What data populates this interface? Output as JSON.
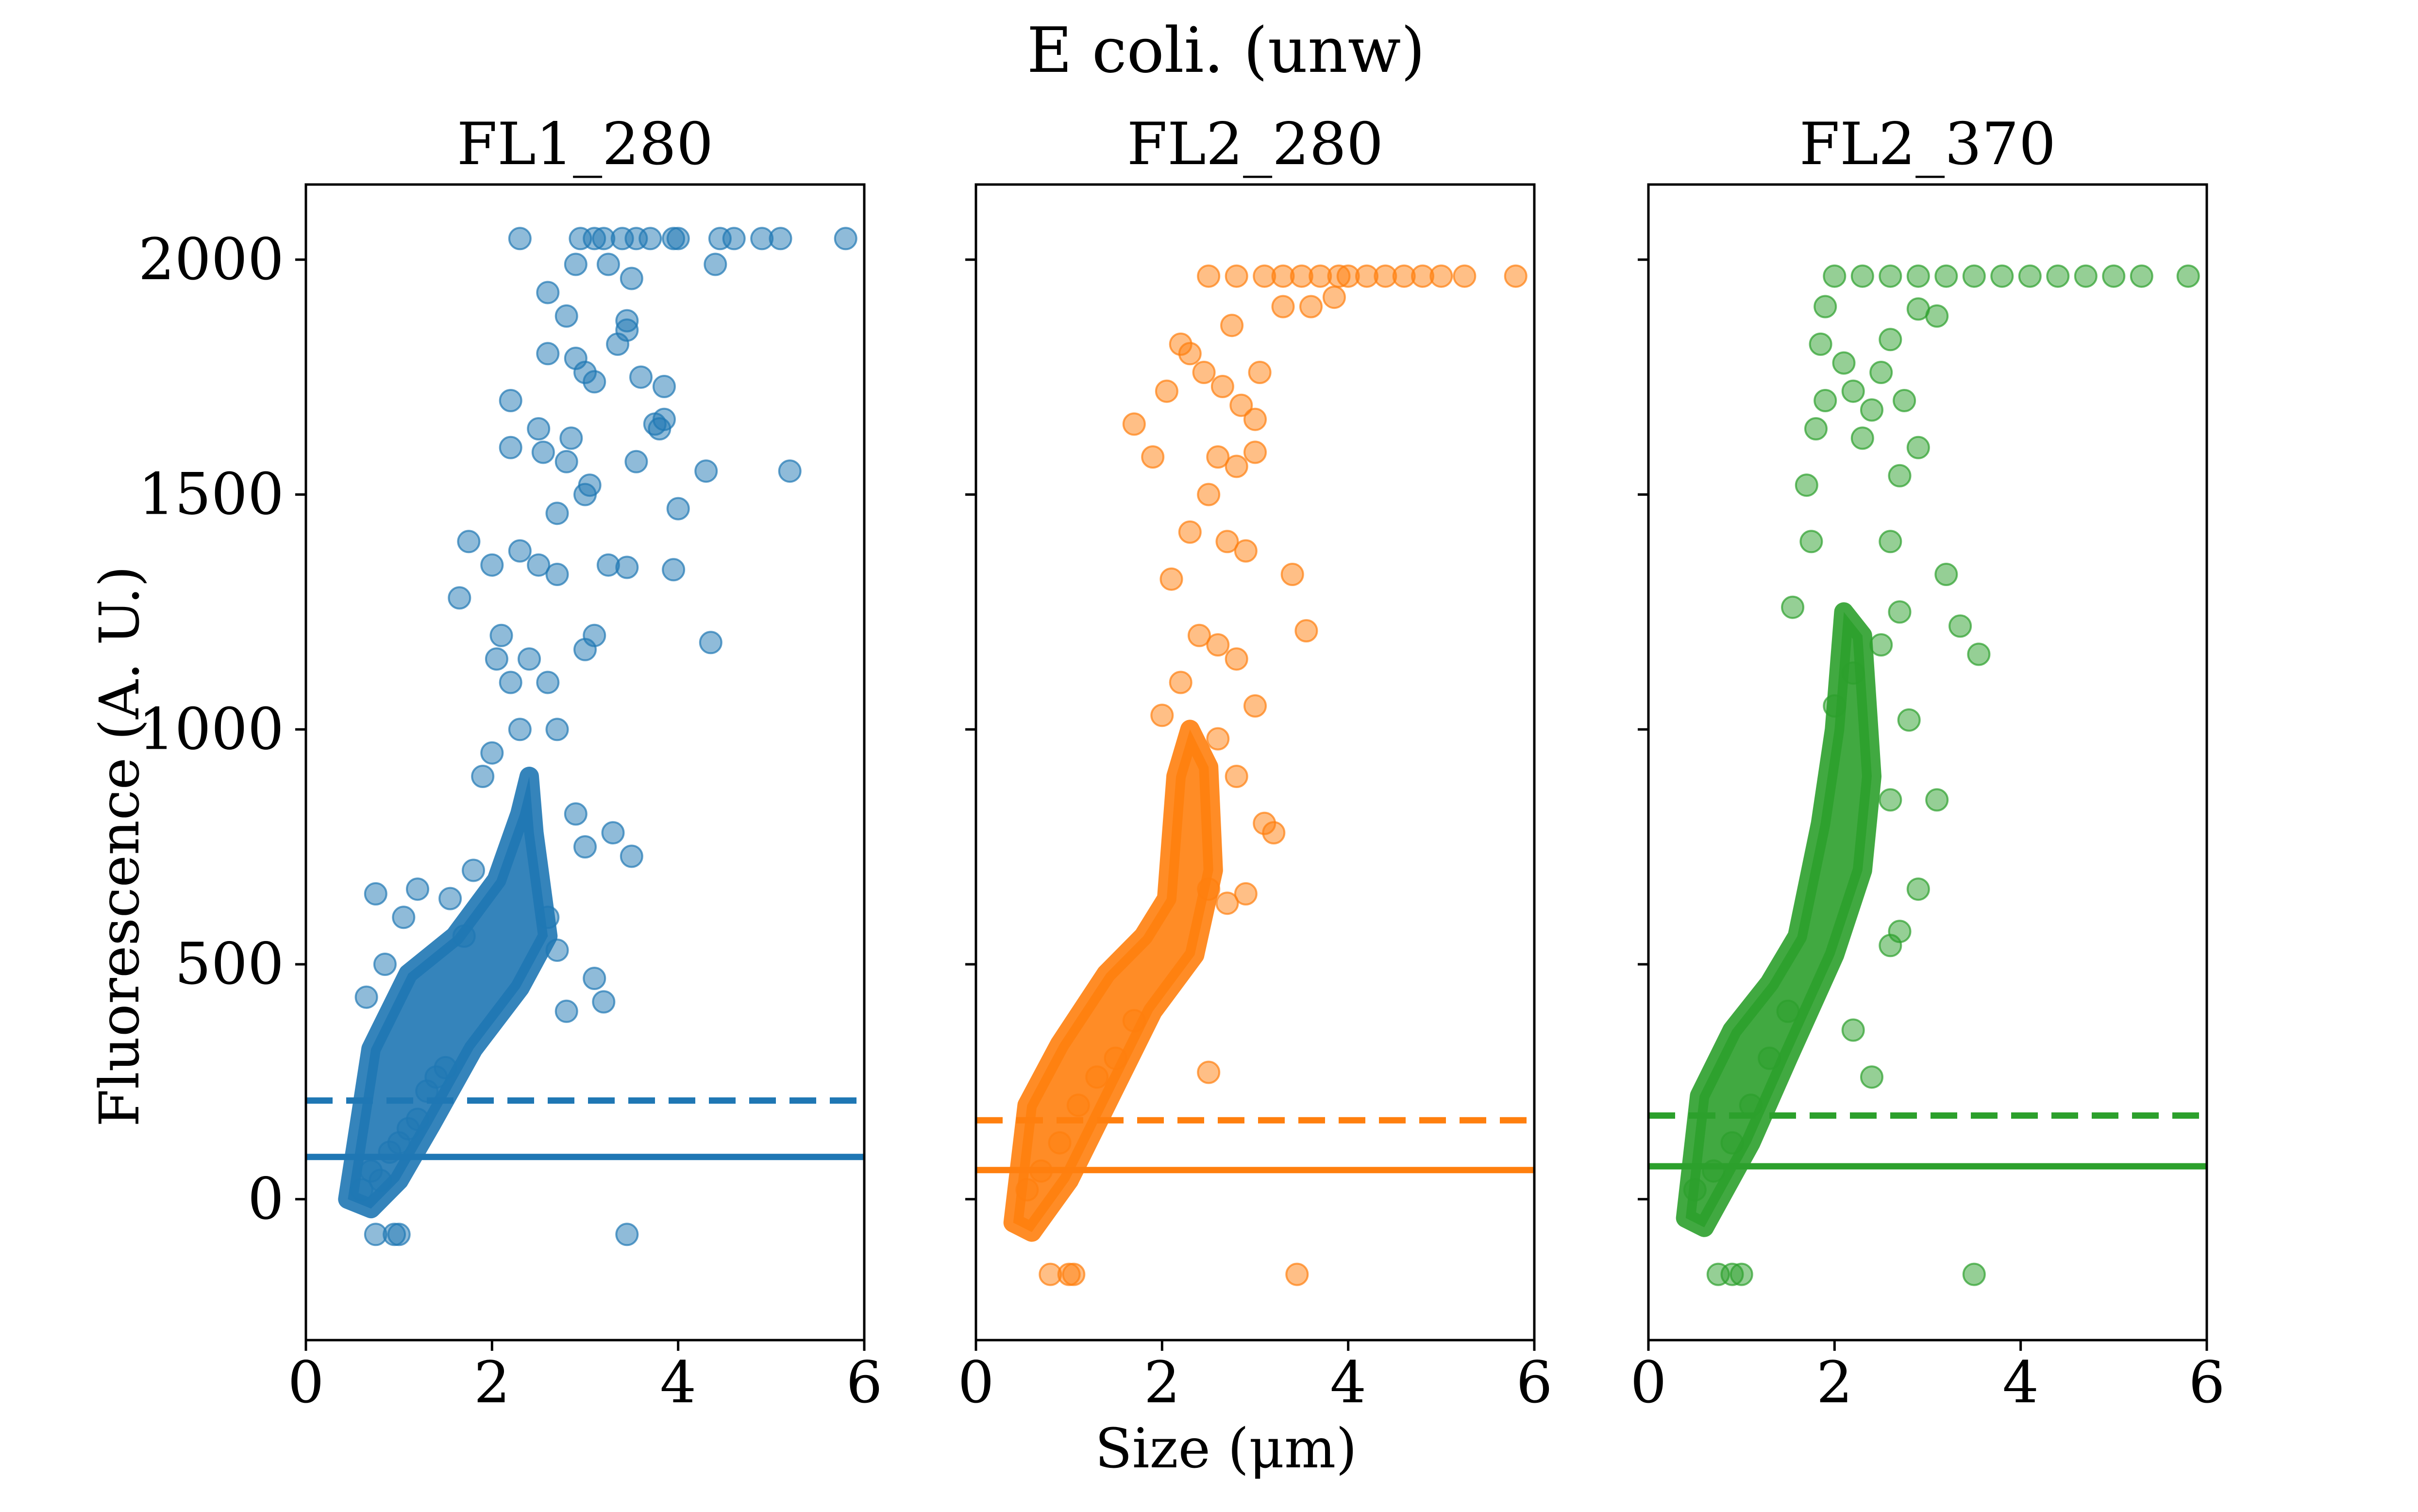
{
  "figure": {
    "suptitle": "E coli. (unw)",
    "xlabel": "Size (μm)",
    "ylabel": "Fluorescence (A. U.)"
  },
  "chart_data": [
    {
      "type": "scatter",
      "title": "FL1_280",
      "color": "#1f77b4",
      "xlim": [
        0,
        6
      ],
      "ylim": [
        -300,
        2160
      ],
      "xticks": [
        0,
        2,
        4,
        6
      ],
      "yticks": [
        0,
        500,
        1000,
        1500,
        2000
      ],
      "ytick_labels_shown": true,
      "hlines": [
        {
          "y": 90,
          "style": "solid"
        },
        {
          "y": 210,
          "style": "dashed"
        }
      ],
      "saturation": 2045,
      "points": [
        [
          0.75,
          -75
        ],
        [
          0.95,
          -75
        ],
        [
          1.0,
          -75
        ],
        [
          3.45,
          -75
        ],
        [
          0.6,
          20
        ],
        [
          0.7,
          60
        ],
        [
          0.8,
          40
        ],
        [
          0.9,
          100
        ],
        [
          1.0,
          120
        ],
        [
          1.1,
          150
        ],
        [
          1.2,
          170
        ],
        [
          1.3,
          230
        ],
        [
          1.4,
          260
        ],
        [
          1.5,
          280
        ],
        [
          0.65,
          430
        ],
        [
          0.75,
          650
        ],
        [
          0.85,
          500
        ],
        [
          1.05,
          600
        ],
        [
          1.2,
          660
        ],
        [
          1.55,
          640
        ],
        [
          1.7,
          560
        ],
        [
          1.8,
          700
        ],
        [
          1.9,
          900
        ],
        [
          2.0,
          950
        ],
        [
          2.05,
          1150
        ],
        [
          2.1,
          1200
        ],
        [
          2.2,
          1100
        ],
        [
          2.3,
          1000
        ],
        [
          2.4,
          1150
        ],
        [
          2.6,
          1100
        ],
        [
          2.7,
          1000
        ],
        [
          3.0,
          1170
        ],
        [
          3.1,
          1200
        ],
        [
          2.9,
          820
        ],
        [
          2.6,
          600
        ],
        [
          2.7,
          530
        ],
        [
          3.0,
          750
        ],
        [
          3.3,
          780
        ],
        [
          3.5,
          730
        ],
        [
          3.1,
          470
        ],
        [
          2.8,
          400
        ],
        [
          3.2,
          420
        ],
        [
          1.65,
          1280
        ],
        [
          1.75,
          1400
        ],
        [
          2.0,
          1350
        ],
        [
          2.3,
          1380
        ],
        [
          2.5,
          1350
        ],
        [
          2.7,
          1330
        ],
        [
          3.0,
          1500
        ],
        [
          3.05,
          1520
        ],
        [
          3.25,
          1350
        ],
        [
          3.45,
          1345
        ],
        [
          3.95,
          1340
        ],
        [
          4.35,
          1185
        ],
        [
          2.2,
          1600
        ],
        [
          2.2,
          1700
        ],
        [
          2.5,
          1640
        ],
        [
          2.55,
          1590
        ],
        [
          2.7,
          1460
        ],
        [
          2.8,
          1570
        ],
        [
          2.85,
          1620
        ],
        [
          2.6,
          1800
        ],
        [
          2.8,
          1880
        ],
        [
          2.9,
          1790
        ],
        [
          3.0,
          1760
        ],
        [
          3.1,
          1740
        ],
        [
          3.35,
          1820
        ],
        [
          3.45,
          1870
        ],
        [
          3.45,
          1850
        ],
        [
          3.5,
          1960
        ],
        [
          3.6,
          1750
        ],
        [
          3.55,
          1570
        ],
        [
          3.75,
          1650
        ],
        [
          3.8,
          1640
        ],
        [
          3.85,
          1730
        ],
        [
          3.85,
          1660
        ],
        [
          4.0,
          1470
        ],
        [
          4.3,
          1550
        ],
        [
          5.2,
          1550
        ],
        [
          2.6,
          1930
        ],
        [
          2.9,
          1990
        ],
        [
          2.3,
          2045
        ],
        [
          2.95,
          2045
        ],
        [
          3.1,
          2045
        ],
        [
          3.2,
          2045
        ],
        [
          3.4,
          2045
        ],
        [
          3.55,
          2045
        ],
        [
          3.7,
          2045
        ],
        [
          3.95,
          2045
        ],
        [
          4.0,
          2045
        ],
        [
          4.45,
          2045
        ],
        [
          4.6,
          2045
        ],
        [
          4.9,
          2045
        ],
        [
          5.1,
          2045
        ],
        [
          5.8,
          2045
        ],
        [
          4.4,
          1990
        ],
        [
          3.25,
          1990
        ]
      ],
      "cloud": [
        [
          0.45,
          0
        ],
        [
          0.7,
          320
        ],
        [
          1.1,
          480
        ],
        [
          1.6,
          560
        ],
        [
          2.05,
          680
        ],
        [
          2.3,
          820
        ],
        [
          2.4,
          900
        ],
        [
          2.45,
          780
        ],
        [
          2.6,
          560
        ],
        [
          2.3,
          450
        ],
        [
          1.8,
          320
        ],
        [
          1.35,
          160
        ],
        [
          1.0,
          40
        ],
        [
          0.7,
          -20
        ]
      ]
    },
    {
      "type": "scatter",
      "title": "FL2_280",
      "color": "#ff7f0e",
      "xlim": [
        0,
        6
      ],
      "ylim": [
        -300,
        2160
      ],
      "xticks": [
        0,
        2,
        4,
        6
      ],
      "yticks": [
        0,
        500,
        1000,
        1500,
        2000
      ],
      "ytick_labels_shown": false,
      "hlines": [
        {
          "y": 62,
          "style": "solid"
        },
        {
          "y": 168,
          "style": "dashed"
        }
      ],
      "saturation": 1965,
      "points": [
        [
          0.8,
          -160
        ],
        [
          1.0,
          -160
        ],
        [
          1.05,
          -160
        ],
        [
          3.45,
          -160
        ],
        [
          0.55,
          20
        ],
        [
          0.7,
          60
        ],
        [
          0.9,
          120
        ],
        [
          1.1,
          200
        ],
        [
          1.3,
          260
        ],
        [
          1.5,
          300
        ],
        [
          1.7,
          380
        ],
        [
          2.5,
          270
        ],
        [
          2.5,
          660
        ],
        [
          2.7,
          630
        ],
        [
          2.9,
          650
        ],
        [
          3.1,
          800
        ],
        [
          3.2,
          780
        ],
        [
          2.8,
          900
        ],
        [
          2.6,
          980
        ],
        [
          2.0,
          1030
        ],
        [
          2.2,
          1100
        ],
        [
          2.4,
          1200
        ],
        [
          2.6,
          1180
        ],
        [
          2.8,
          1150
        ],
        [
          3.0,
          1050
        ],
        [
          2.7,
          1400
        ],
        [
          2.9,
          1380
        ],
        [
          2.1,
          1320
        ],
        [
          2.3,
          1420
        ],
        [
          3.4,
          1330
        ],
        [
          3.55,
          1210
        ],
        [
          2.5,
          1500
        ],
        [
          2.6,
          1580
        ],
        [
          2.8,
          1560
        ],
        [
          3.0,
          1590
        ],
        [
          1.7,
          1650
        ],
        [
          1.9,
          1580
        ],
        [
          2.05,
          1720
        ],
        [
          2.3,
          1800
        ],
        [
          2.45,
          1760
        ],
        [
          2.65,
          1730
        ],
        [
          2.75,
          1860
        ],
        [
          2.85,
          1690
        ],
        [
          3.0,
          1660
        ],
        [
          3.05,
          1760
        ],
        [
          2.2,
          1820
        ],
        [
          3.3,
          1900
        ],
        [
          3.6,
          1900
        ],
        [
          3.85,
          1920
        ],
        [
          3.9,
          1965
        ],
        [
          2.5,
          1965
        ],
        [
          2.8,
          1965
        ],
        [
          3.1,
          1965
        ],
        [
          3.3,
          1965
        ],
        [
          3.5,
          1965
        ],
        [
          3.7,
          1965
        ],
        [
          4.0,
          1965
        ],
        [
          4.2,
          1965
        ],
        [
          4.4,
          1965
        ],
        [
          4.6,
          1965
        ],
        [
          4.8,
          1965
        ],
        [
          5.0,
          1965
        ],
        [
          5.25,
          1965
        ],
        [
          5.8,
          1965
        ]
      ],
      "cloud": [
        [
          0.4,
          -50
        ],
        [
          0.55,
          200
        ],
        [
          0.9,
          330
        ],
        [
          1.4,
          480
        ],
        [
          1.8,
          560
        ],
        [
          2.05,
          640
        ],
        [
          2.15,
          900
        ],
        [
          2.3,
          1000
        ],
        [
          2.5,
          920
        ],
        [
          2.55,
          700
        ],
        [
          2.35,
          520
        ],
        [
          1.9,
          400
        ],
        [
          1.45,
          220
        ],
        [
          1.0,
          40
        ],
        [
          0.6,
          -70
        ]
      ]
    },
    {
      "type": "scatter",
      "title": "FL2_370",
      "color": "#2ca02c",
      "xlim": [
        0,
        6
      ],
      "ylim": [
        -300,
        2160
      ],
      "xticks": [
        0,
        2,
        4,
        6
      ],
      "yticks": [
        0,
        500,
        1000,
        1500,
        2000
      ],
      "ytick_labels_shown": false,
      "hlines": [
        {
          "y": 70,
          "style": "solid"
        },
        {
          "y": 178,
          "style": "dashed"
        }
      ],
      "saturation": 1965,
      "points": [
        [
          0.75,
          -160
        ],
        [
          0.9,
          -160
        ],
        [
          1.0,
          -160
        ],
        [
          3.5,
          -160
        ],
        [
          0.5,
          20
        ],
        [
          0.7,
          60
        ],
        [
          0.9,
          120
        ],
        [
          1.1,
          200
        ],
        [
          1.3,
          300
        ],
        [
          1.5,
          400
        ],
        [
          2.4,
          260
        ],
        [
          2.2,
          360
        ],
        [
          2.6,
          540
        ],
        [
          2.7,
          570
        ],
        [
          2.9,
          660
        ],
        [
          2.6,
          850
        ],
        [
          3.1,
          850
        ],
        [
          2.8,
          1020
        ],
        [
          2.0,
          1050
        ],
        [
          2.2,
          1120
        ],
        [
          2.5,
          1180
        ],
        [
          2.7,
          1250
        ],
        [
          3.2,
          1330
        ],
        [
          3.35,
          1220
        ],
        [
          3.55,
          1160
        ],
        [
          2.6,
          1400
        ],
        [
          2.7,
          1540
        ],
        [
          2.9,
          1600
        ],
        [
          2.4,
          1680
        ],
        [
          2.2,
          1720
        ],
        [
          2.5,
          1760
        ],
        [
          2.6,
          1830
        ],
        [
          2.75,
          1700
        ],
        [
          1.8,
          1640
        ],
        [
          1.85,
          1820
        ],
        [
          1.9,
          1700
        ],
        [
          2.1,
          1780
        ],
        [
          2.3,
          1620
        ],
        [
          1.7,
          1520
        ],
        [
          1.75,
          1400
        ],
        [
          1.55,
          1260
        ],
        [
          1.9,
          1900
        ],
        [
          2.9,
          1895
        ],
        [
          3.1,
          1880
        ],
        [
          2.0,
          1965
        ],
        [
          2.3,
          1965
        ],
        [
          2.6,
          1965
        ],
        [
          2.9,
          1965
        ],
        [
          3.2,
          1965
        ],
        [
          3.5,
          1965
        ],
        [
          3.8,
          1965
        ],
        [
          4.1,
          1965
        ],
        [
          4.4,
          1965
        ],
        [
          4.7,
          1965
        ],
        [
          5.0,
          1965
        ],
        [
          5.3,
          1965
        ],
        [
          5.8,
          1965
        ]
      ],
      "cloud": [
        [
          0.4,
          -40
        ],
        [
          0.55,
          220
        ],
        [
          0.9,
          360
        ],
        [
          1.3,
          460
        ],
        [
          1.6,
          560
        ],
        [
          1.85,
          800
        ],
        [
          2.0,
          1000
        ],
        [
          2.1,
          1250
        ],
        [
          2.3,
          1200
        ],
        [
          2.4,
          900
        ],
        [
          2.3,
          700
        ],
        [
          2.0,
          520
        ],
        [
          1.5,
          300
        ],
        [
          1.1,
          120
        ],
        [
          0.6,
          -60
        ]
      ]
    }
  ]
}
